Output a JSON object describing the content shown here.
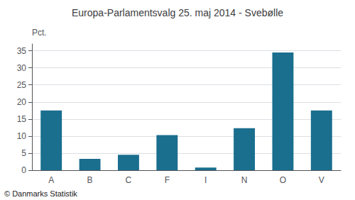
{
  "chart_data": {
    "type": "bar",
    "title": "Europa-Parlamentsvalg 25. maj 2014 - Svebølle",
    "categories": [
      "A",
      "B",
      "C",
      "F",
      "I",
      "N",
      "O",
      "V"
    ],
    "values": [
      17.5,
      3.3,
      4.5,
      10.3,
      0.8,
      12.3,
      34.5,
      17.5
    ],
    "color": "#1a6e8e",
    "ylim": [
      0,
      37
    ],
    "yticks": [
      0,
      5,
      10,
      15,
      20,
      25,
      30,
      35
    ],
    "grid": true,
    "ylabel": "Pct.",
    "footer": "© Danmarks Statistik"
  }
}
